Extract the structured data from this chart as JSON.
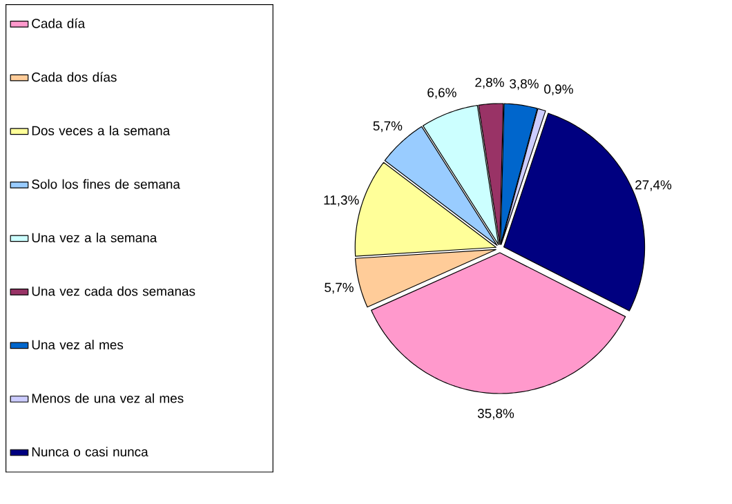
{
  "chart_data": {
    "type": "pie",
    "categories": [
      "Cada día",
      "Cada dos días",
      "Dos veces a la semana",
      "Solo los fines de semana",
      "Una vez a la semana",
      "Una vez cada dos semanas",
      "Una vez al mes",
      "Menos de una vez al mes",
      "Nunca o casi nunca"
    ],
    "values": [
      35.8,
      5.7,
      11.3,
      5.7,
      6.6,
      2.8,
      3.8,
      0.9,
      27.4
    ],
    "colors": [
      "#ff99cc",
      "#ffcc99",
      "#ffff99",
      "#99ccff",
      "#ccffff",
      "#993366",
      "#0066cc",
      "#ccccff",
      "#000080"
    ],
    "value_labels": [
      "35,8%",
      "5,7%",
      "11,3%",
      "5,7%",
      "6,6%",
      "2,8%",
      "3,8%",
      "0,9%",
      "27,4%"
    ],
    "legend": "left"
  }
}
